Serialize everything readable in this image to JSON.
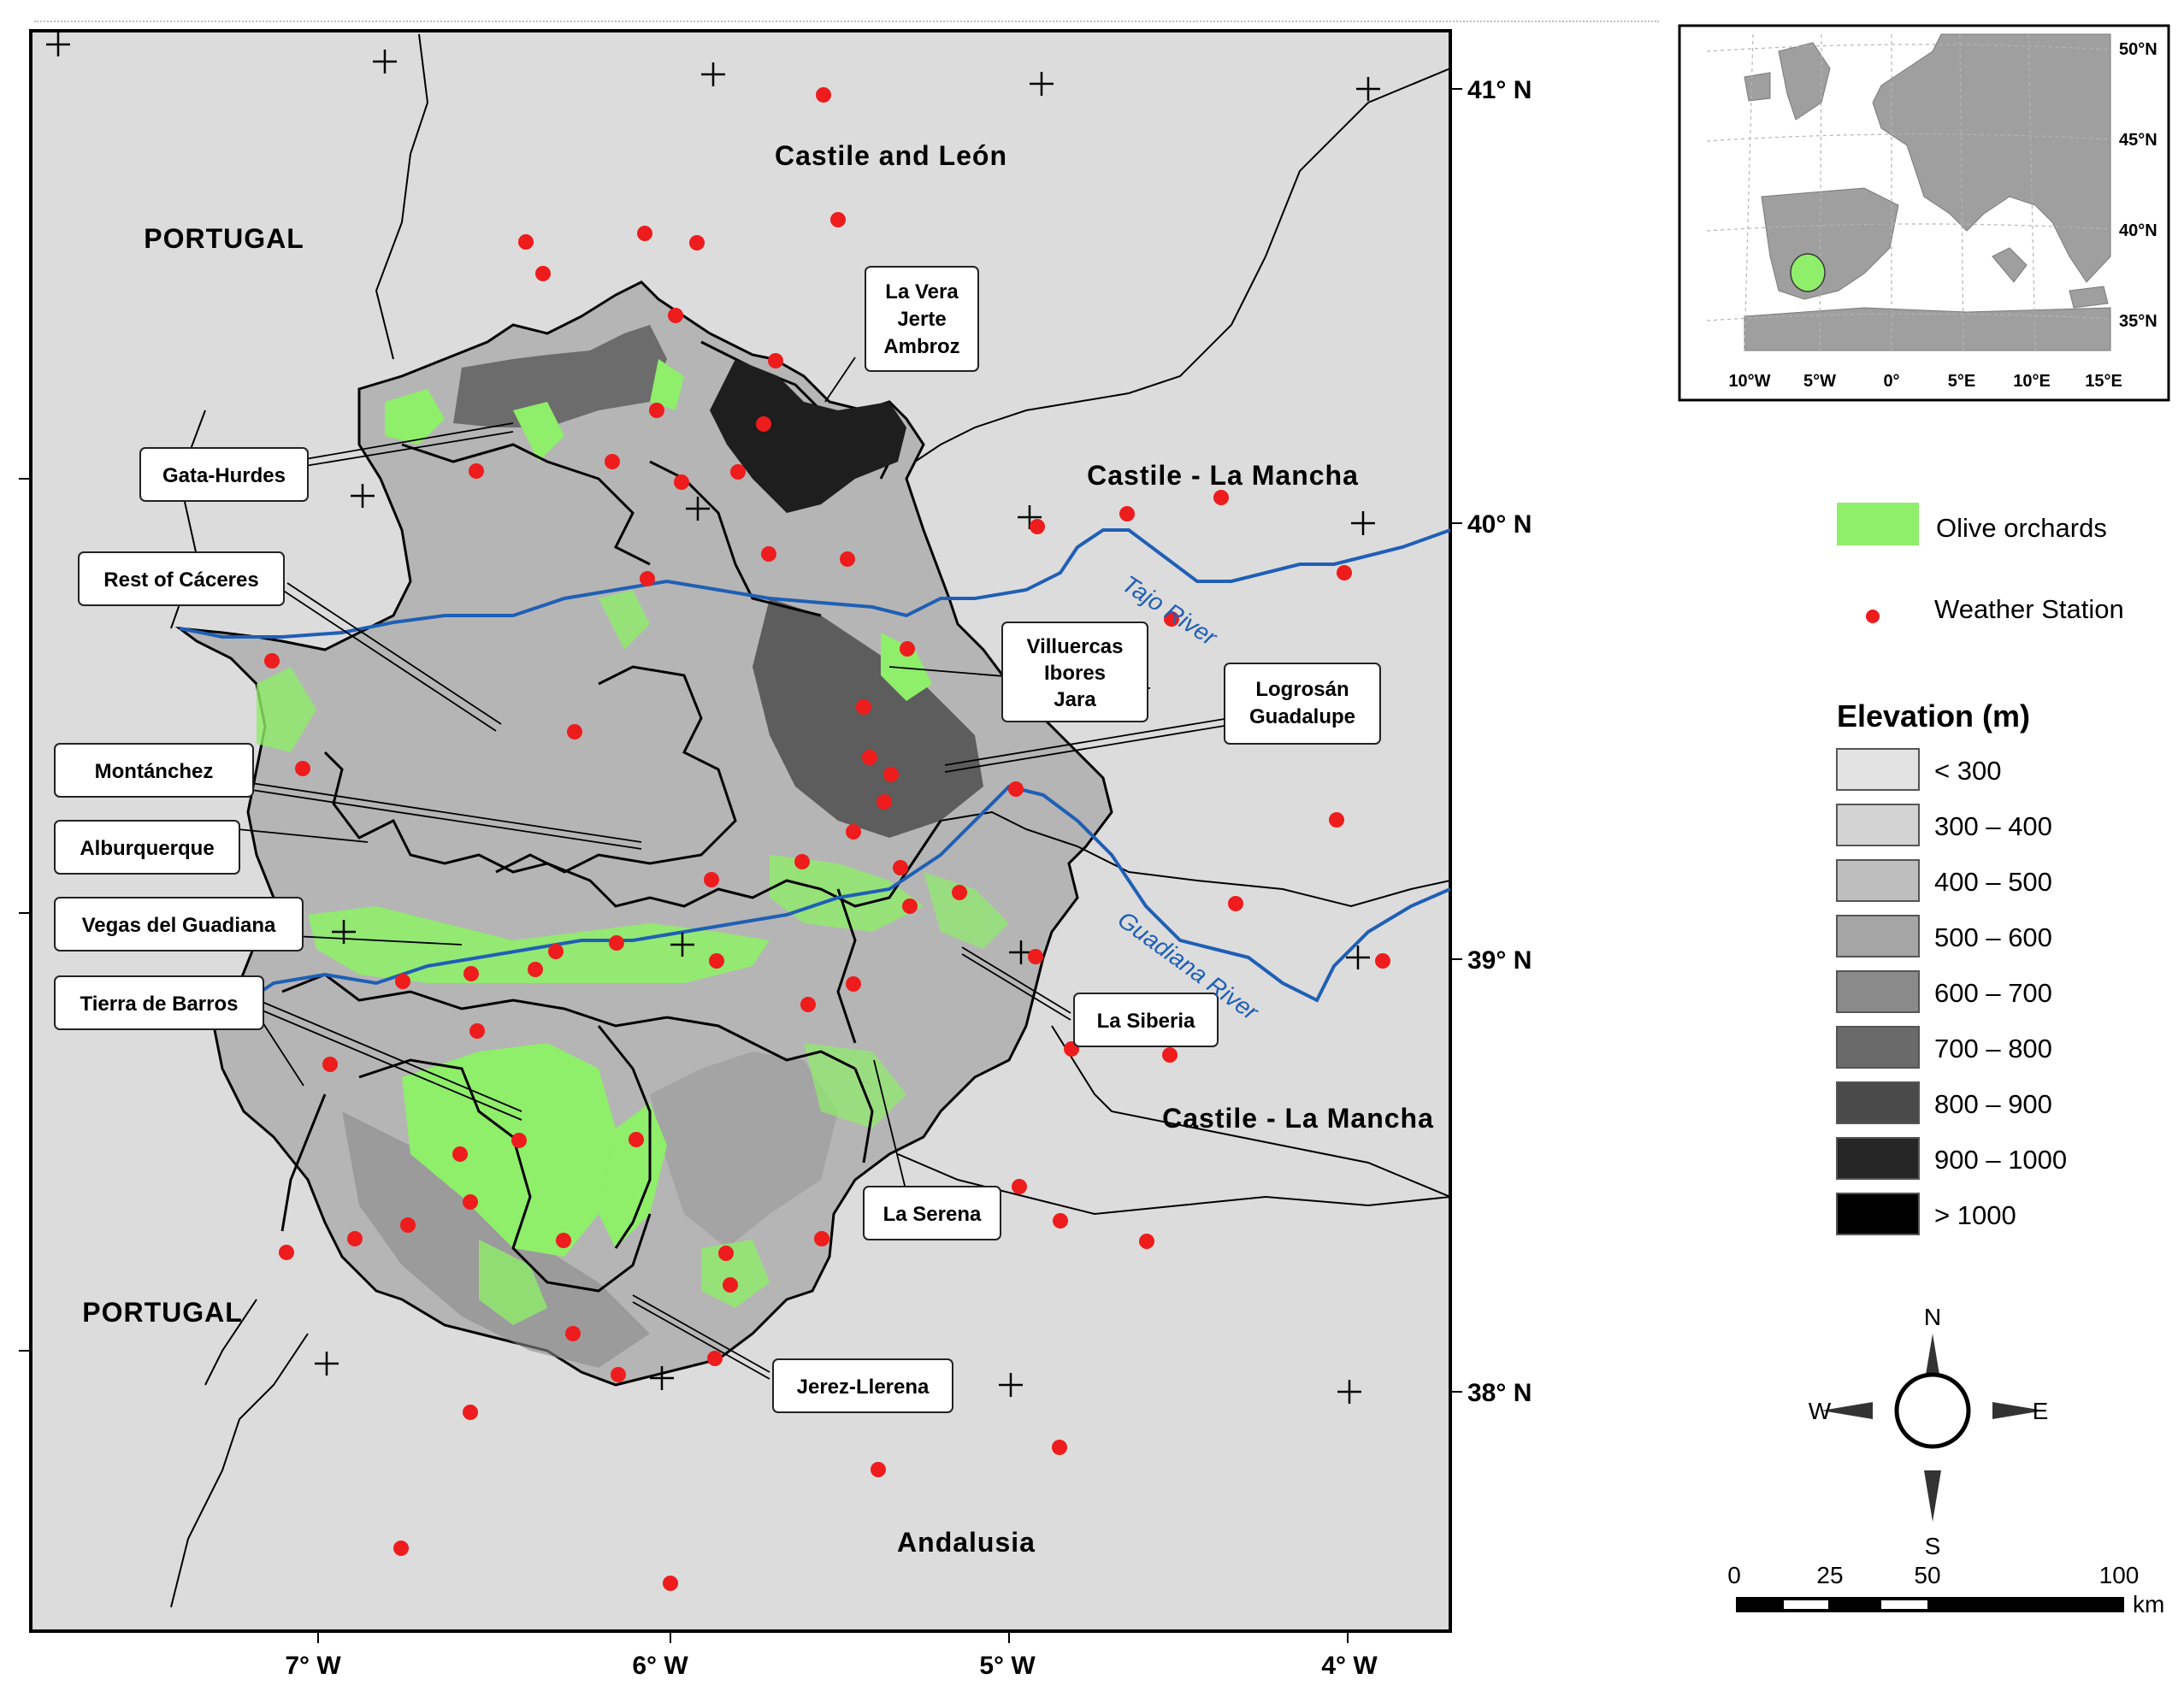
{
  "map": {
    "regions": {
      "castile_leon": "Castile and León",
      "portugal_north": "PORTUGAL",
      "portugal_south": "PORTUGAL",
      "castile_la_mancha_north": "Castile - La Mancha",
      "castile_la_mancha_south": "Castile - La Mancha",
      "andalusia": "Andalusia"
    },
    "rivers": {
      "tajo": "Tajo River",
      "guadiana": "Guadiana River"
    },
    "callouts": {
      "la_vera": [
        "La Vera",
        "Jerte",
        "Ambroz"
      ],
      "gata_hurdes": "Gata-Hurdes",
      "rest_caceres": "Rest of Cáceres",
      "villuercas": [
        "Villuercas",
        "Ibores",
        "Jara"
      ],
      "logrosan": [
        "Logrosán",
        "Guadalupe"
      ],
      "montanchez": "Montánchez",
      "alburquerque": "Alburquerque",
      "vegas_guadiana": "Vegas del Guadiana",
      "tierra_barros": "Tierra de Barros",
      "la_siberia": "La Siberia",
      "la_serena": "La Serena",
      "jerez_llerena": "Jerez-Llerena"
    },
    "lat_labels": [
      "41° N",
      "40° N",
      "39° N",
      "38° N"
    ],
    "lon_labels": [
      "7° W",
      "6° W",
      "5° W",
      "4° W"
    ]
  },
  "inset": {
    "lat_labels": [
      "50°N",
      "45°N",
      "40°N",
      "35°N"
    ],
    "lon_labels": [
      "10°W",
      "5°W",
      "0°",
      "5°E",
      "10°E",
      "15°E"
    ]
  },
  "legend": {
    "olive": "Olive orchards",
    "station": "Weather Station",
    "elevation_title": "Elevation (m)",
    "classes": [
      {
        "label": "< 300",
        "color": "#e3e3e3"
      },
      {
        "label": "300 – 400",
        "color": "#d3d3d3"
      },
      {
        "label": "400 – 500",
        "color": "#bebebe"
      },
      {
        "label": "500 – 600",
        "color": "#a5a5a5"
      },
      {
        "label": "600 – 700",
        "color": "#8a8a8a"
      },
      {
        "label": "700 – 800",
        "color": "#6a6a6a"
      },
      {
        "label": "800 – 900",
        "color": "#4a4a4a"
      },
      {
        "label": "900 – 1000",
        "color": "#262626"
      },
      {
        "label": "> 1000",
        "color": "#000000"
      }
    ]
  },
  "compass": {
    "n": "N",
    "s": "S",
    "e": "E",
    "w": "W"
  },
  "scalebar": {
    "ticks": [
      "0",
      "25",
      "50",
      "100"
    ],
    "unit": "km"
  },
  "colors": {
    "olive": "#8fee6a",
    "station": "#ee1c1c",
    "river": "#1f5fb5",
    "background": "#dcdcdc"
  }
}
